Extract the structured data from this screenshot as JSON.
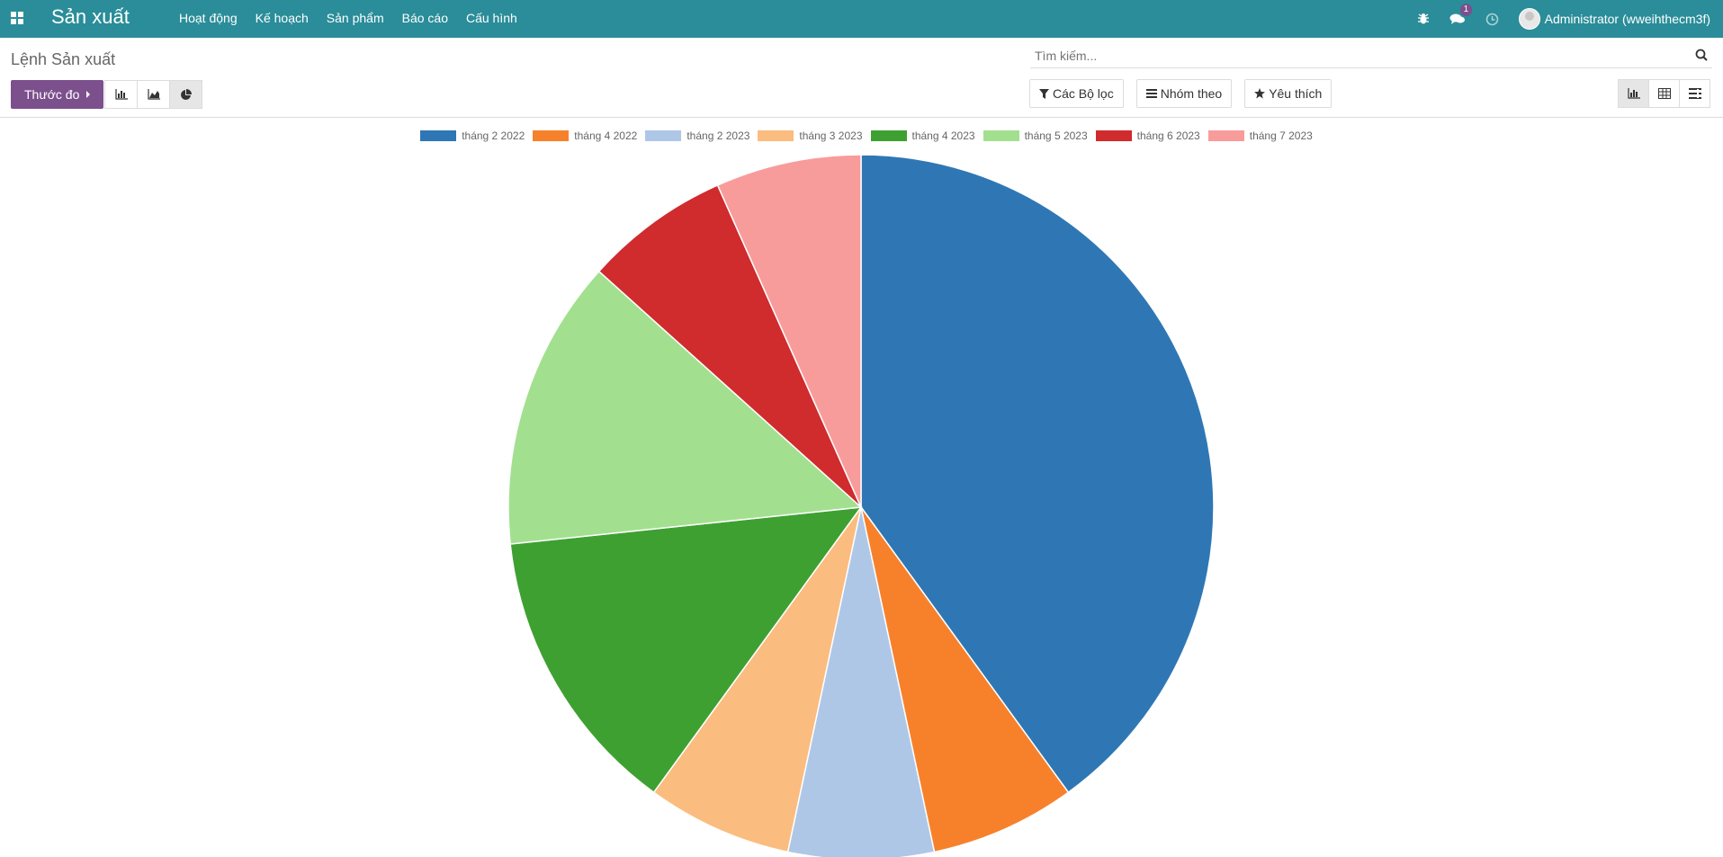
{
  "app": {
    "title": "Sản xuất"
  },
  "menu": [
    "Hoạt động",
    "Kế hoạch",
    "Sản phẩm",
    "Báo cáo",
    "Cấu hình"
  ],
  "systray": {
    "messages_badge": "1",
    "user": "Administrator (wweihthecm3f)"
  },
  "breadcrumb": "Lệnh Sản xuất",
  "controls": {
    "measure_label": "Thước đo",
    "search_placeholder": "Tìm kiếm...",
    "filters_label": "Các Bộ lọc",
    "groupby_label": "Nhóm theo",
    "favorites_label": "Yêu thích"
  },
  "chart_data": {
    "type": "pie",
    "categories": [
      "tháng 2 2022",
      "tháng 4 2022",
      "tháng 2 2023",
      "tháng 3 2023",
      "tháng 4 2023",
      "tháng 5 2023",
      "tháng 6 2023",
      "tháng 7 2023"
    ],
    "values": [
      6,
      1,
      1,
      1,
      2,
      2,
      1,
      1
    ],
    "colors": [
      "#2f77b4",
      "#f7812b",
      "#afc7e7",
      "#fbbc7f",
      "#3fa032",
      "#a2e08f",
      "#d02b2d",
      "#f89c9b"
    ],
    "legend_position": "top"
  }
}
